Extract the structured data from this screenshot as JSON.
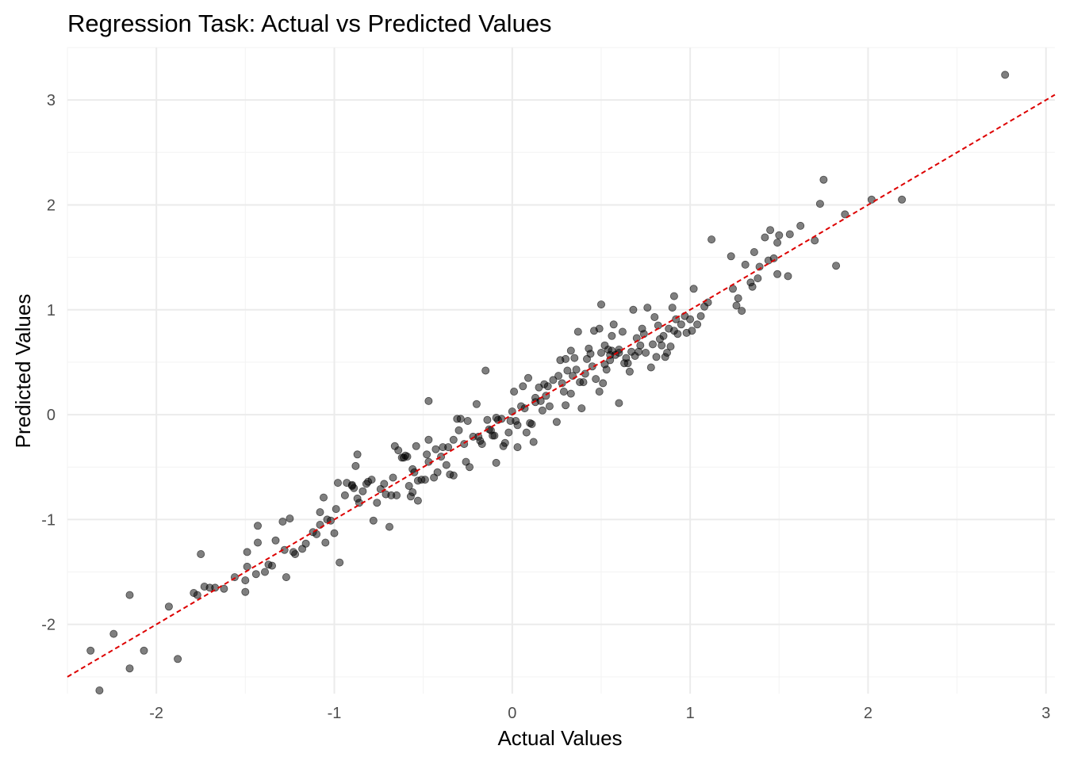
{
  "chart_data": {
    "type": "scatter",
    "title": "Regression Task: Actual vs Predicted Values",
    "xlabel": "Actual Values",
    "ylabel": "Predicted Values",
    "xlim": [
      -2.5,
      3.05
    ],
    "ylim": [
      -2.66,
      3.5
    ],
    "x_ticks": [
      -2,
      -1,
      0,
      1,
      2,
      3
    ],
    "y_ticks": [
      -2,
      -1,
      0,
      1,
      2,
      3
    ],
    "x_tick_labels": [
      "-2",
      "-1",
      "0",
      "1",
      "2",
      "3"
    ],
    "y_tick_labels": [
      "-2",
      "-1",
      "0",
      "1",
      "2",
      "3"
    ],
    "grid": true,
    "legend": "none",
    "point_color": "#000000",
    "point_opacity": 0.5,
    "reference_line": {
      "slope": 1,
      "intercept": 0,
      "color": "#dd0000",
      "style": "dashed"
    },
    "points": [
      [
        -2.37,
        -2.25
      ],
      [
        -2.32,
        -2.63
      ],
      [
        -2.24,
        -2.09
      ],
      [
        -2.15,
        -1.72
      ],
      [
        -2.15,
        -2.42
      ],
      [
        -2.07,
        -2.25
      ],
      [
        -1.93,
        -1.83
      ],
      [
        -1.88,
        -2.33
      ],
      [
        -1.79,
        -1.7
      ],
      [
        -1.77,
        -1.72
      ],
      [
        -1.75,
        -1.33
      ],
      [
        -1.73,
        -1.64
      ],
      [
        -1.7,
        -1.65
      ],
      [
        -1.67,
        -1.65
      ],
      [
        -1.62,
        -1.66
      ],
      [
        -1.56,
        -1.55
      ],
      [
        -1.5,
        -1.69
      ],
      [
        -1.5,
        -1.58
      ],
      [
        -1.49,
        -1.31
      ],
      [
        -1.49,
        -1.45
      ],
      [
        -1.44,
        -1.52
      ],
      [
        -1.43,
        -1.22
      ],
      [
        -1.43,
        -1.06
      ],
      [
        -1.39,
        -1.5
      ],
      [
        -1.37,
        -1.43
      ],
      [
        -1.35,
        -1.44
      ],
      [
        -1.33,
        -1.2
      ],
      [
        -1.29,
        -1.02
      ],
      [
        -1.28,
        -1.29
      ],
      [
        -1.27,
        -1.55
      ],
      [
        -1.25,
        -0.99
      ],
      [
        -1.23,
        -1.31
      ],
      [
        -1.22,
        -1.33
      ],
      [
        -1.18,
        -1.28
      ],
      [
        -1.16,
        -1.23
      ],
      [
        -1.12,
        -1.12
      ],
      [
        -1.1,
        -1.14
      ],
      [
        -1.08,
        -1.05
      ],
      [
        -1.08,
        -0.93
      ],
      [
        -1.06,
        -0.79
      ],
      [
        -1.05,
        -1.22
      ],
      [
        -1.04,
        -1.0
      ],
      [
        -1.02,
        -1.01
      ],
      [
        -1.0,
        -1.13
      ],
      [
        -0.99,
        -0.9
      ],
      [
        -0.98,
        -0.65
      ],
      [
        -0.97,
        -1.41
      ],
      [
        -0.94,
        -0.77
      ],
      [
        -0.93,
        -0.65
      ],
      [
        -0.9,
        -0.67
      ],
      [
        -0.9,
        -0.68
      ],
      [
        -0.89,
        -0.7
      ],
      [
        -0.88,
        -0.49
      ],
      [
        -0.87,
        -0.38
      ],
      [
        -0.87,
        -0.8
      ],
      [
        -0.86,
        -0.84
      ],
      [
        -0.84,
        -0.73
      ],
      [
        -0.82,
        -0.66
      ],
      [
        -0.81,
        -0.64
      ],
      [
        -0.79,
        -0.62
      ],
      [
        -0.78,
        -1.01
      ],
      [
        -0.76,
        -0.84
      ],
      [
        -0.74,
        -0.71
      ],
      [
        -0.72,
        -0.66
      ],
      [
        -0.71,
        -0.76
      ],
      [
        -0.69,
        -1.07
      ],
      [
        -0.68,
        -0.77
      ],
      [
        -0.67,
        -0.6
      ],
      [
        -0.66,
        -0.3
      ],
      [
        -0.65,
        -0.77
      ],
      [
        -0.64,
        -0.34
      ],
      [
        -0.62,
        -0.41
      ],
      [
        -0.61,
        -0.41
      ],
      [
        -0.6,
        -0.39
      ],
      [
        -0.59,
        -0.4
      ],
      [
        -0.58,
        -0.68
      ],
      [
        -0.57,
        -0.78
      ],
      [
        -0.56,
        -0.74
      ],
      [
        -0.56,
        -0.52
      ],
      [
        -0.55,
        -0.55
      ],
      [
        -0.54,
        -0.3
      ],
      [
        -0.53,
        -0.63
      ],
      [
        -0.53,
        -0.82
      ],
      [
        -0.51,
        -0.62
      ],
      [
        -0.49,
        -0.62
      ],
      [
        -0.48,
        -0.38
      ],
      [
        -0.47,
        -0.24
      ],
      [
        -0.47,
        -0.45
      ],
      [
        -0.47,
        0.13
      ],
      [
        -0.44,
        -0.6
      ],
      [
        -0.43,
        -0.33
      ],
      [
        -0.42,
        -0.55
      ],
      [
        -0.4,
        -0.4
      ],
      [
        -0.39,
        -0.31
      ],
      [
        -0.37,
        -0.48
      ],
      [
        -0.36,
        -0.31
      ],
      [
        -0.35,
        -0.57
      ],
      [
        -0.33,
        -0.58
      ],
      [
        -0.33,
        -0.24
      ],
      [
        -0.31,
        -0.04
      ],
      [
        -0.3,
        -0.15
      ],
      [
        -0.29,
        -0.04
      ],
      [
        -0.27,
        -0.28
      ],
      [
        -0.26,
        -0.45
      ],
      [
        -0.25,
        -0.06
      ],
      [
        -0.24,
        -0.5
      ],
      [
        -0.22,
        -0.21
      ],
      [
        -0.2,
        0.1
      ],
      [
        -0.19,
        -0.21
      ],
      [
        -0.18,
        -0.25
      ],
      [
        -0.17,
        -0.28
      ],
      [
        -0.15,
        0.42
      ],
      [
        -0.14,
        -0.05
      ],
      [
        -0.13,
        -0.14
      ],
      [
        -0.12,
        -0.15
      ],
      [
        -0.11,
        -0.2
      ],
      [
        -0.1,
        -0.2
      ],
      [
        -0.09,
        -0.46
      ],
      [
        -0.09,
        -0.03
      ],
      [
        -0.08,
        -0.05
      ],
      [
        -0.06,
        -0.04
      ],
      [
        -0.05,
        -0.3
      ],
      [
        -0.04,
        -0.27
      ],
      [
        -0.02,
        -0.17
      ],
      [
        -0.01,
        -0.06
      ],
      [
        0.0,
        0.03
      ],
      [
        0.01,
        0.22
      ],
      [
        0.02,
        -0.06
      ],
      [
        0.03,
        -0.1
      ],
      [
        0.03,
        -0.31
      ],
      [
        0.05,
        0.08
      ],
      [
        0.06,
        0.27
      ],
      [
        0.07,
        0.06
      ],
      [
        0.08,
        -0.17
      ],
      [
        0.09,
        0.35
      ],
      [
        0.1,
        -0.08
      ],
      [
        0.11,
        -0.09
      ],
      [
        0.12,
        -0.26
      ],
      [
        0.13,
        0.12
      ],
      [
        0.13,
        0.16
      ],
      [
        0.15,
        0.26
      ],
      [
        0.16,
        0.13
      ],
      [
        0.17,
        0.04
      ],
      [
        0.18,
        0.29
      ],
      [
        0.19,
        0.18
      ],
      [
        0.2,
        0.27
      ],
      [
        0.21,
        0.08
      ],
      [
        0.23,
        0.33
      ],
      [
        0.25,
        -0.07
      ],
      [
        0.26,
        0.37
      ],
      [
        0.27,
        0.52
      ],
      [
        0.28,
        0.3
      ],
      [
        0.29,
        0.22
      ],
      [
        0.3,
        0.09
      ],
      [
        0.3,
        0.53
      ],
      [
        0.31,
        0.42
      ],
      [
        0.33,
        0.61
      ],
      [
        0.33,
        0.2
      ],
      [
        0.34,
        0.37
      ],
      [
        0.35,
        0.54
      ],
      [
        0.36,
        0.43
      ],
      [
        0.37,
        0.79
      ],
      [
        0.38,
        0.31
      ],
      [
        0.39,
        0.06
      ],
      [
        0.4,
        0.31
      ],
      [
        0.41,
        0.39
      ],
      [
        0.42,
        0.53
      ],
      [
        0.43,
        0.63
      ],
      [
        0.44,
        0.58
      ],
      [
        0.45,
        0.46
      ],
      [
        0.46,
        0.8
      ],
      [
        0.47,
        0.34
      ],
      [
        0.49,
        0.22
      ],
      [
        0.49,
        0.82
      ],
      [
        0.5,
        1.05
      ],
      [
        0.5,
        0.59
      ],
      [
        0.51,
        0.3
      ],
      [
        0.52,
        0.48
      ],
      [
        0.52,
        0.66
      ],
      [
        0.53,
        0.43
      ],
      [
        0.54,
        0.62
      ],
      [
        0.55,
        0.52
      ],
      [
        0.55,
        0.57
      ],
      [
        0.56,
        0.61
      ],
      [
        0.56,
        0.75
      ],
      [
        0.57,
        0.86
      ],
      [
        0.58,
        0.57
      ],
      [
        0.6,
        0.59
      ],
      [
        0.6,
        0.62
      ],
      [
        0.6,
        0.11
      ],
      [
        0.62,
        0.79
      ],
      [
        0.63,
        0.49
      ],
      [
        0.64,
        0.54
      ],
      [
        0.65,
        0.49
      ],
      [
        0.66,
        0.41
      ],
      [
        0.67,
        0.6
      ],
      [
        0.68,
        1.0
      ],
      [
        0.69,
        0.56
      ],
      [
        0.7,
        0.73
      ],
      [
        0.71,
        0.6
      ],
      [
        0.72,
        0.66
      ],
      [
        0.73,
        0.82
      ],
      [
        0.74,
        0.77
      ],
      [
        0.75,
        0.59
      ],
      [
        0.76,
        1.02
      ],
      [
        0.78,
        0.45
      ],
      [
        0.79,
        0.67
      ],
      [
        0.8,
        0.93
      ],
      [
        0.81,
        0.55
      ],
      [
        0.82,
        0.85
      ],
      [
        0.83,
        0.72
      ],
      [
        0.84,
        0.66
      ],
      [
        0.85,
        0.75
      ],
      [
        0.86,
        0.55
      ],
      [
        0.87,
        0.59
      ],
      [
        0.88,
        0.82
      ],
      [
        0.89,
        0.65
      ],
      [
        0.9,
        1.02
      ],
      [
        0.91,
        1.13
      ],
      [
        0.91,
        0.8
      ],
      [
        0.92,
        0.91
      ],
      [
        0.93,
        0.77
      ],
      [
        0.95,
        0.86
      ],
      [
        0.97,
        0.94
      ],
      [
        0.98,
        0.78
      ],
      [
        1.0,
        0.91
      ],
      [
        1.01,
        0.8
      ],
      [
        1.02,
        1.2
      ],
      [
        1.04,
        0.86
      ],
      [
        1.06,
        0.94
      ],
      [
        1.08,
        1.03
      ],
      [
        1.1,
        1.07
      ],
      [
        1.12,
        1.67
      ],
      [
        1.23,
        1.51
      ],
      [
        1.24,
        1.2
      ],
      [
        1.26,
        1.04
      ],
      [
        1.27,
        1.11
      ],
      [
        1.29,
        0.99
      ],
      [
        1.31,
        1.43
      ],
      [
        1.34,
        1.26
      ],
      [
        1.35,
        1.22
      ],
      [
        1.36,
        1.55
      ],
      [
        1.38,
        1.3
      ],
      [
        1.39,
        1.41
      ],
      [
        1.42,
        1.69
      ],
      [
        1.44,
        1.47
      ],
      [
        1.45,
        1.76
      ],
      [
        1.47,
        1.49
      ],
      [
        1.49,
        1.64
      ],
      [
        1.49,
        1.34
      ],
      [
        1.5,
        1.71
      ],
      [
        1.55,
        1.32
      ],
      [
        1.56,
        1.72
      ],
      [
        1.62,
        1.8
      ],
      [
        1.7,
        1.66
      ],
      [
        1.73,
        2.01
      ],
      [
        1.75,
        2.24
      ],
      [
        1.82,
        1.42
      ],
      [
        1.87,
        1.91
      ],
      [
        2.02,
        2.05
      ],
      [
        2.19,
        2.05
      ],
      [
        2.77,
        3.24
      ]
    ]
  }
}
